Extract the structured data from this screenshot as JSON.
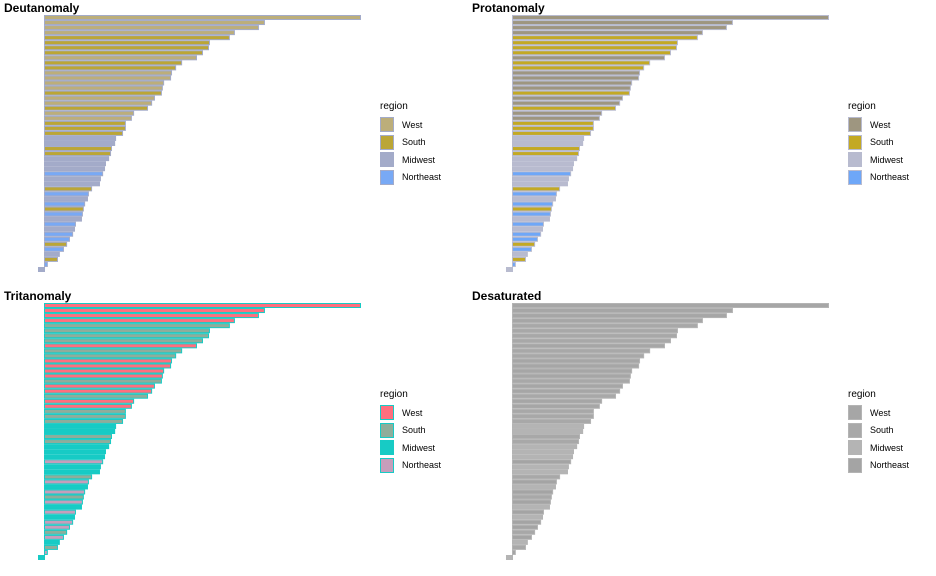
{
  "chart_data": [
    {
      "type": "bar",
      "orientation": "horizontal",
      "title": "Deutanomaly",
      "xlabel": "",
      "ylabel": "",
      "legend": {
        "title": "region",
        "position": "right"
      },
      "colors": {
        "West": "#BCAE7A",
        "South": "#BBA636",
        "Midwest": "#A3ABC9",
        "Northeast": "#78A9F5"
      },
      "outline": "#A3ABC9"
    },
    {
      "type": "bar",
      "orientation": "horizontal",
      "title": "Protanomaly",
      "xlabel": "",
      "ylabel": "",
      "legend": {
        "title": "region",
        "position": "right"
      },
      "colors": {
        "West": "#9E9680",
        "South": "#C3A924",
        "Midwest": "#B8BBCF",
        "Northeast": "#6EA7F8"
      },
      "outline": "#B8BBCF"
    },
    {
      "type": "bar",
      "orientation": "horizontal",
      "title": "Tritanomaly",
      "xlabel": "",
      "ylabel": "",
      "legend": {
        "title": "region",
        "position": "right"
      },
      "colors": {
        "West": "#FF6F7E",
        "South": "#8FAD9B",
        "Midwest": "#17CBC5",
        "Northeast": "#C69EBB"
      },
      "outline": "#17CBC5"
    },
    {
      "type": "bar",
      "orientation": "horizontal",
      "title": "Desaturated",
      "xlabel": "",
      "ylabel": "",
      "legend": {
        "title": "region",
        "position": "right"
      },
      "colors": {
        "West": "#A6A6A6",
        "South": "#A8A8A8",
        "Midwest": "#B4B4B4",
        "Northeast": "#A4A4A4"
      },
      "outline": "#B4B4B4"
    }
  ],
  "shared": {
    "regions": [
      "West",
      "South",
      "Midwest",
      "Northeast"
    ],
    "xlim": [
      -2,
      100
    ],
    "bars": [
      {
        "region": "West",
        "value": 100
      },
      {
        "region": "West",
        "value": 69.6
      },
      {
        "region": "West",
        "value": 67.7
      },
      {
        "region": "West",
        "value": 60.1
      },
      {
        "region": "South",
        "value": 58.5
      },
      {
        "region": "South",
        "value": 52.2
      },
      {
        "region": "South",
        "value": 51.9
      },
      {
        "region": "South",
        "value": 50.0
      },
      {
        "region": "West",
        "value": 48.1
      },
      {
        "region": "South",
        "value": 43.4
      },
      {
        "region": "South",
        "value": 41.5
      },
      {
        "region": "West",
        "value": 40.2
      },
      {
        "region": "West",
        "value": 39.9
      },
      {
        "region": "West",
        "value": 37.7
      },
      {
        "region": "West",
        "value": 37.3
      },
      {
        "region": "South",
        "value": 37.0
      },
      {
        "region": "West",
        "value": 34.8
      },
      {
        "region": "West",
        "value": 33.9
      },
      {
        "region": "South",
        "value": 32.6
      },
      {
        "region": "West",
        "value": 28.2
      },
      {
        "region": "West",
        "value": 27.5
      },
      {
        "region": "South",
        "value": 25.6
      },
      {
        "region": "South",
        "value": 25.6
      },
      {
        "region": "South",
        "value": 24.7
      },
      {
        "region": "Midwest",
        "value": 22.5
      },
      {
        "region": "Midwest",
        "value": 22.2
      },
      {
        "region": "South",
        "value": 21.2
      },
      {
        "region": "South",
        "value": 20.9
      },
      {
        "region": "Midwest",
        "value": 20.3
      },
      {
        "region": "Midwest",
        "value": 19.3
      },
      {
        "region": "Midwest",
        "value": 19.0
      },
      {
        "region": "Northeast",
        "value": 18.4
      },
      {
        "region": "Midwest",
        "value": 17.7
      },
      {
        "region": "Midwest",
        "value": 17.4
      },
      {
        "region": "South",
        "value": 14.9
      },
      {
        "region": "Northeast",
        "value": 13.9
      },
      {
        "region": "Midwest",
        "value": 13.6
      },
      {
        "region": "Northeast",
        "value": 12.7
      },
      {
        "region": "South",
        "value": 12.3
      },
      {
        "region": "Northeast",
        "value": 12.0
      },
      {
        "region": "Midwest",
        "value": 11.7
      },
      {
        "region": "Northeast",
        "value": 9.8
      },
      {
        "region": "Midwest",
        "value": 9.5
      },
      {
        "region": "Northeast",
        "value": 8.9
      },
      {
        "region": "Northeast",
        "value": 7.9
      },
      {
        "region": "South",
        "value": 7.0
      },
      {
        "region": "Northeast",
        "value": 6.0
      },
      {
        "region": "Midwest",
        "value": 4.7
      },
      {
        "region": "South",
        "value": 4.1
      },
      {
        "region": "Northeast",
        "value": 0.9
      },
      {
        "region": "Midwest",
        "value": -1.9
      }
    ]
  }
}
